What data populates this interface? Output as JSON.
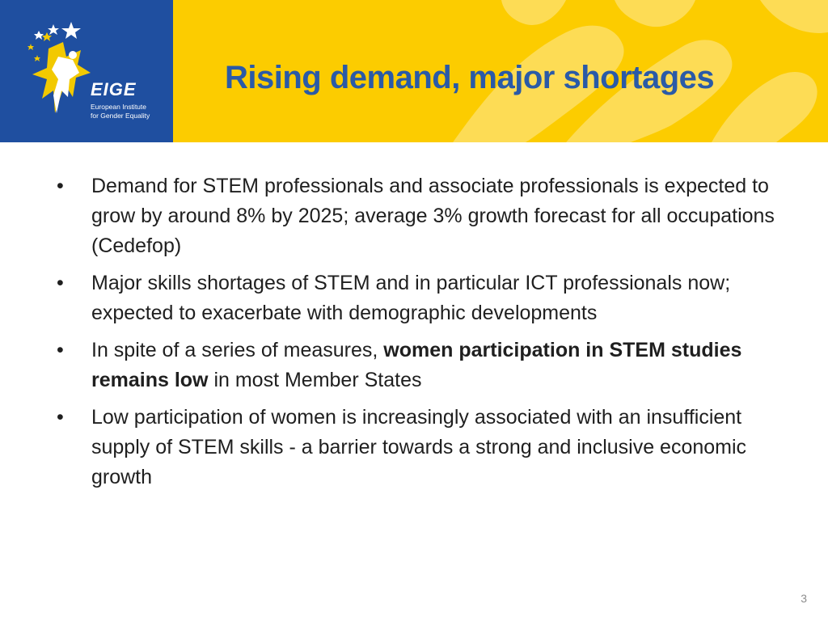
{
  "header": {
    "title": "Rising demand, major shortages",
    "background_color": "#fccc00",
    "title_color": "#2a5aa7"
  },
  "logo": {
    "wordmark": "EIGE",
    "caption_line1": "European Institute",
    "caption_line2": "for Gender Equality",
    "panel_color": "#1f4fa0",
    "star_color": "#f2c900",
    "icons": [
      "star-icon",
      "person-figure-icon"
    ]
  },
  "bullets": [
    {
      "before": "Demand for STEM professionals and associate professionals is expected to grow by around 8% by 2025; average 3% growth forecast for all occupations (Cedefop)",
      "bold": "",
      "after": ""
    },
    {
      "before": "Major skills shortages of STEM and in particular ICT professionals now; expected to exacerbate with demographic developments",
      "bold": "",
      "after": ""
    },
    {
      "before": "In spite of a series of measures, ",
      "bold": "women participation in STEM studies remains low",
      "after": " in most Member States"
    },
    {
      "before": "Low participation of women is increasingly associated with an insufficient supply of STEM skills  - a barrier towards a strong and inclusive economic growth",
      "bold": "",
      "after": ""
    }
  ],
  "bullet_glyph": "•",
  "page_number": "3"
}
